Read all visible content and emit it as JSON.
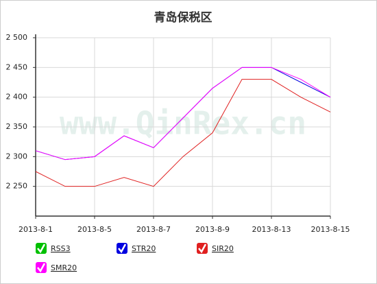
{
  "chart_data": {
    "type": "line",
    "title": "青岛保税区",
    "watermark": "www.QinRex.cn",
    "categories": [
      "2013-8-1",
      null,
      "2013-8-5",
      null,
      "2013-8-7",
      null,
      "2013-8-9",
      null,
      "2013-8-13",
      null,
      "2013-8-15"
    ],
    "series": [
      {
        "name": "RSS3",
        "color": "#00c000",
        "values": [
          null,
          null,
          null,
          null,
          null,
          null,
          null,
          null,
          null,
          null,
          null
        ]
      },
      {
        "name": "STR20",
        "color": "#0000e0",
        "values": [
          2310,
          2295,
          2300,
          2335,
          2315,
          2365,
          2415,
          2450,
          2450,
          2425,
          2400
        ]
      },
      {
        "name": "SIR20",
        "color": "#e02020",
        "values": [
          2275,
          2250,
          2250,
          2265,
          2250,
          2300,
          2340,
          2430,
          2430,
          2400,
          2375
        ]
      },
      {
        "name": "SMR20",
        "color": "#ff00ff",
        "values": [
          2310,
          2295,
          2300,
          2335,
          2315,
          2365,
          2415,
          2450,
          2450,
          2430,
          2400
        ]
      }
    ],
    "ylim": [
      2200,
      2500
    ],
    "yticks": [
      {
        "value": 2250,
        "label": "2 250"
      },
      {
        "value": 2300,
        "label": "2 300"
      },
      {
        "value": 2350,
        "label": "2 350"
      },
      {
        "value": 2400,
        "label": "2 400"
      },
      {
        "value": 2450,
        "label": "2 450"
      },
      {
        "value": 2500,
        "label": "2 500"
      }
    ],
    "grid": true
  }
}
